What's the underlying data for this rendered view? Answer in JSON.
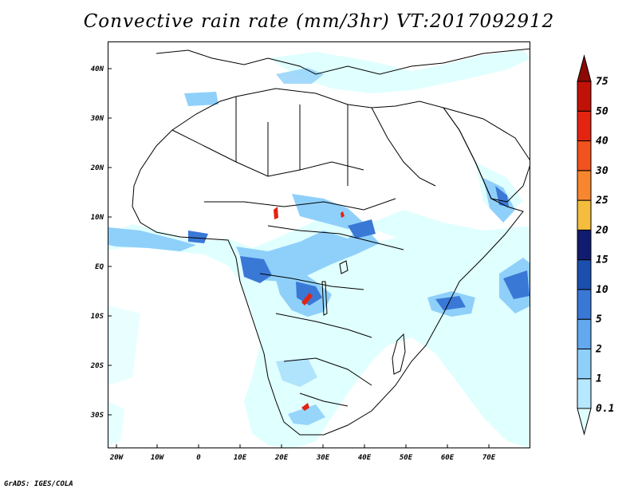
{
  "title": "Convective rain rate (mm/3hr) VT:2017092912",
  "footer": "GrADS: IGES/COLA",
  "map": {
    "lat_labels": [
      "40N",
      "30N",
      "20N",
      "10N",
      "EQ",
      "10S",
      "20S",
      "30S"
    ],
    "lon_labels": [
      "20W",
      "10W",
      "0",
      "10E",
      "20E",
      "30E",
      "40E",
      "50E",
      "60E",
      "70E"
    ]
  },
  "colorbar": {
    "labels": [
      "0.1",
      "1",
      "2",
      "5",
      "10",
      "15",
      "20",
      "25",
      "30",
      "40",
      "50",
      "75"
    ],
    "colors": [
      "#e0ffff",
      "#b6e8ff",
      "#8fd0fa",
      "#62a9ee",
      "#3a78d6",
      "#1a4fae",
      "#111c6e",
      "#f5bd3d",
      "#f7862f",
      "#f2521d",
      "#e22411",
      "#c11208",
      "#8c0a05"
    ]
  }
}
